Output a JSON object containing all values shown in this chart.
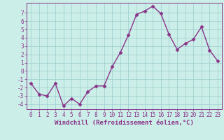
{
  "x": [
    0,
    1,
    2,
    3,
    4,
    5,
    6,
    7,
    8,
    9,
    10,
    11,
    12,
    13,
    14,
    15,
    16,
    17,
    18,
    19,
    20,
    21,
    22,
    23
  ],
  "y": [
    -1.5,
    -2.8,
    -3.0,
    -1.5,
    -4.2,
    -3.3,
    -4.0,
    -2.5,
    -1.8,
    -1.8,
    0.5,
    2.2,
    4.3,
    6.8,
    7.2,
    7.8,
    6.9,
    4.4,
    2.6,
    3.3,
    3.8,
    5.3,
    2.5,
    1.2
  ],
  "line_color": "#883388",
  "marker": "D",
  "marker_size": 2.5,
  "bg_color": "#cceee8",
  "grid_color": "#99cccc",
  "xlabel": "Windchill (Refroidissement éolien,°C)",
  "xlim": [
    -0.5,
    23.5
  ],
  "ylim": [
    -4.6,
    8.2
  ],
  "yticks": [
    -4,
    -3,
    -2,
    -1,
    0,
    1,
    2,
    3,
    4,
    5,
    6,
    7
  ],
  "xticks": [
    0,
    1,
    2,
    3,
    4,
    5,
    6,
    7,
    8,
    9,
    10,
    11,
    12,
    13,
    14,
    15,
    16,
    17,
    18,
    19,
    20,
    21,
    22,
    23
  ],
  "tick_color": "#883388",
  "tick_label_size": 5.5,
  "xlabel_size": 6.5,
  "line_width": 1.0
}
